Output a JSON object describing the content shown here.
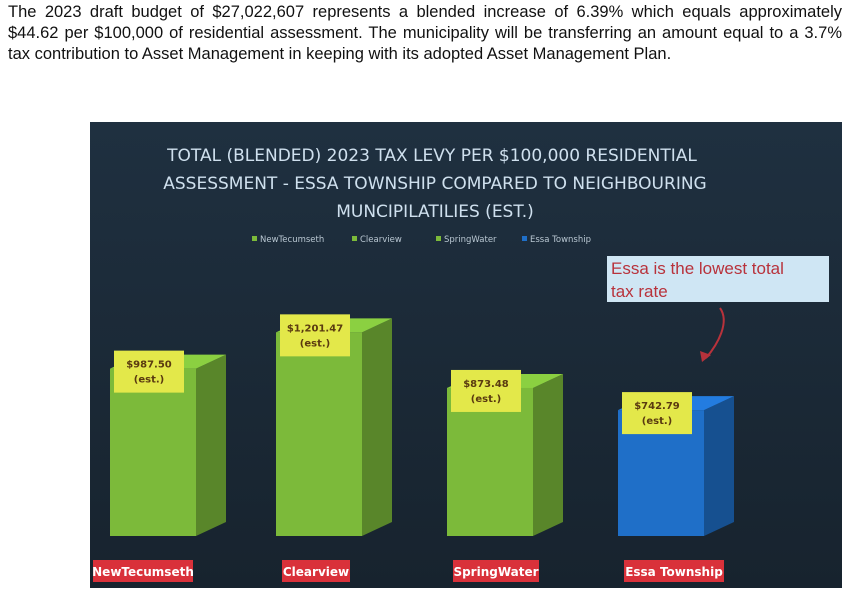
{
  "intro": {
    "text": "The 2023 draft budget of $27,022,607 represents a blended increase of 6.39% which equals approximately $44.62 per $100,000 of residential assessment.  The municipality will be transferring an amount equal to a 3.7% tax contribution to Asset Management in keeping with its adopted Asset Management Plan."
  },
  "chart_data": {
    "type": "bar",
    "title_lines": [
      "TOTAL (BLENDED) 2023 TAX LEVY PER $100,000 RESIDENTIAL",
      "ASSESSMENT - ESSA TOWNSHIP COMPARED TO NEIGHBOURING",
      "MUNCIPILATILIES (EST.)"
    ],
    "categories": [
      "NewTecumseth",
      "Clearview",
      "SpringWater",
      "Essa Township"
    ],
    "values": [
      987.5,
      1201.47,
      873.48,
      742.79
    ],
    "value_labels": [
      "$987.50",
      "$1,201.47",
      "$873.48",
      "$742.79"
    ],
    "value_sublabel": "(est.)",
    "legend": [
      "NewTecumseth",
      "Clearview",
      "SpringWater",
      "Essa Township"
    ],
    "legend_placement": "top-center",
    "colors": {
      "green": "#7cba3a",
      "blue": "#1f6fc8",
      "tag": "#e3e84a",
      "category_label_bg": "#d9313a",
      "background": "#1c2b38"
    },
    "annotation": {
      "line1": "Essa is the lowest total",
      "line2": "tax rate"
    },
    "grid": false
  }
}
